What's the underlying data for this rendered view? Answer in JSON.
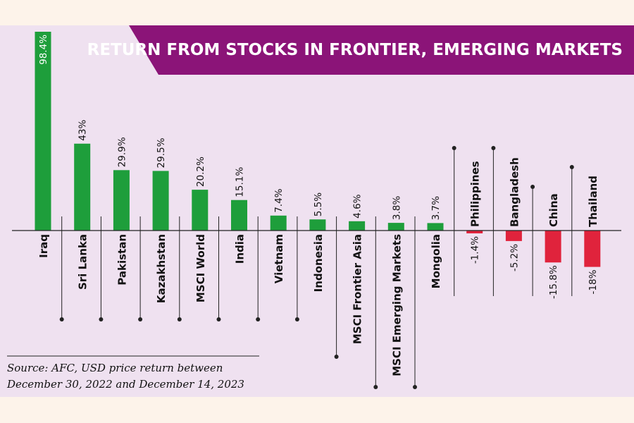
{
  "colors": {
    "page_background": "#fdf3ea",
    "panel_background": "#efe1f0",
    "positive_bar": "#1e9e3b",
    "negative_bar": "#e0233c",
    "title_banner": "#8b1478",
    "leader_line": "#222222"
  },
  "chart_data": {
    "type": "bar",
    "title": "RETURN FROM STOCKS IN FRONTIER, EMERGING MARKETS",
    "categories": [
      "Iraq",
      "Sri Lanka",
      "Pakistan",
      "Kazakhstan",
      "MSCI World",
      "India",
      "Vietnam",
      "Indonesia",
      "MSCI Frontier Asia",
      "MSCI Emerging Markets",
      "Mongolia",
      "Philippines",
      "Bangladesh",
      "China",
      "Thailand"
    ],
    "values": [
      98.4,
      43,
      29.9,
      29.5,
      20.2,
      15.1,
      7.4,
      5.5,
      4.6,
      3.8,
      3.7,
      -1.4,
      -5.2,
      -15.8,
      -18
    ],
    "value_labels": [
      "98.4%",
      "43%",
      "29.9%",
      "29.5%",
      "20.2%",
      "15.1%",
      "7.4%",
      "5.5%",
      "4.6%",
      "3.8%",
      "3.7%",
      "-1.4%",
      "-5.2%",
      "-15.8%",
      "-18%"
    ],
    "unit": "%",
    "xlabel": "",
    "ylabel": "",
    "ylim": [
      -20,
      100
    ],
    "grid": false,
    "legend": "none",
    "orientation": "vertical",
    "label_rotation": "vertical, reading bottom-to-top"
  },
  "source": {
    "line1": "Source: AFC, USD price return between",
    "line2": "December 30, 2022 and December 14, 2023"
  }
}
